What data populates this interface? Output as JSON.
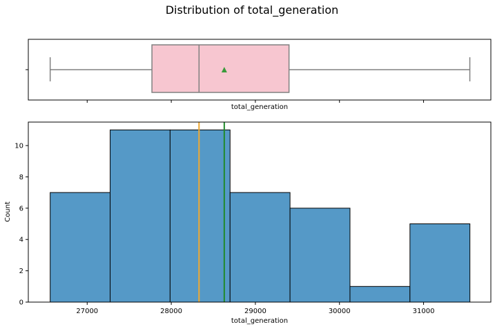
{
  "chart_data": {
    "title": "Distribution of total_generation",
    "colors": {
      "box_fill": "#f7c6d0",
      "box_edge": "#808080",
      "mean_marker": "#3a9a3a",
      "bar_fill": "#5599c7",
      "bar_edge": "#000000",
      "median_line": "#f0a830",
      "mean_line": "#1f8a2a"
    },
    "boxplot": {
      "type": "box",
      "xlabel": "total_generation",
      "stats": {
        "min": 26560,
        "q1": 27770,
        "median": 28330,
        "mean": 28630,
        "q3": 29400,
        "max": 31550
      },
      "show_mean": true
    },
    "histogram": {
      "type": "bar",
      "xlabel": "total_generation",
      "ylabel": "Count",
      "xlim": [
        26300,
        31800
      ],
      "ylim": [
        0,
        11.5
      ],
      "xticks": [
        27000,
        28000,
        29000,
        30000,
        31000
      ],
      "yticks": [
        0,
        2,
        4,
        6,
        8,
        10
      ],
      "bin_edges": [
        26560,
        27273,
        27986,
        28699,
        29412,
        30125,
        30838,
        31551
      ],
      "counts": [
        7,
        11,
        11,
        7,
        6,
        1,
        5
      ],
      "vlines": [
        {
          "name": "median",
          "value": 28330
        },
        {
          "name": "mean",
          "value": 28630
        }
      ]
    }
  }
}
